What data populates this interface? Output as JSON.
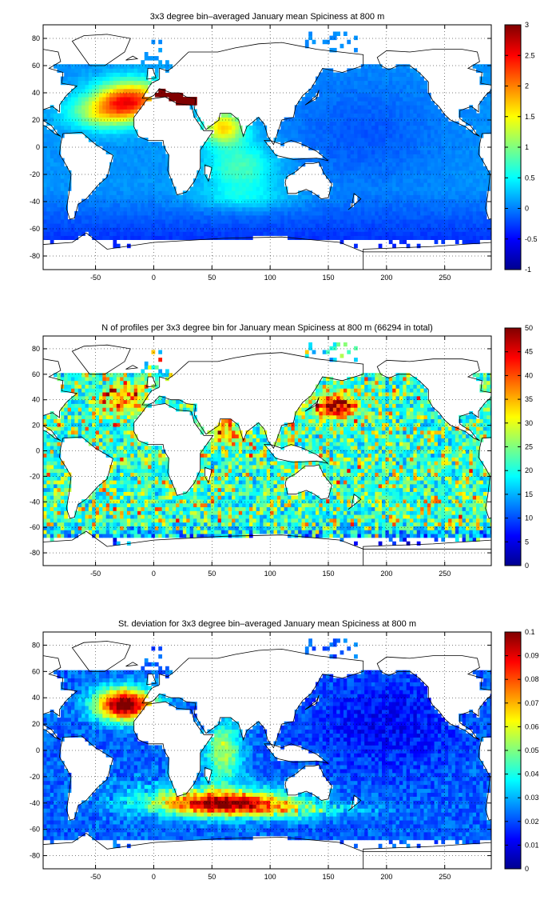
{
  "chart_data": [
    {
      "type": "heatmap",
      "title": "3x3 degree bin–averaged January mean Spiciness at 800 m",
      "xlim": [
        -95,
        290
      ],
      "ylim": [
        -90,
        90
      ],
      "x_ticks": [
        "-50",
        "0",
        "50",
        "100",
        "150",
        "200",
        "250"
      ],
      "y_ticks": [
        "80",
        "60",
        "40",
        "20",
        "0",
        "-20",
        "-40",
        "-60",
        "-80"
      ],
      "clim": [
        -1,
        3
      ],
      "colorbar_ticks": [
        "3",
        "2.5",
        "2",
        "1.5",
        "1",
        "0.5",
        "0",
        "-0.5",
        "-1"
      ],
      "colormap": "jet",
      "grid": true,
      "bin_size_deg": 3
    },
    {
      "type": "heatmap",
      "title": "N of profiles per 3x3 degree bin for January mean Spiciness at 800 m (66294 in total)",
      "xlim": [
        -95,
        290
      ],
      "ylim": [
        -90,
        90
      ],
      "x_ticks": [
        "-50",
        "0",
        "50",
        "100",
        "150",
        "200",
        "250"
      ],
      "y_ticks": [
        "80",
        "60",
        "40",
        "20",
        "0",
        "-20",
        "-40",
        "-60",
        "-80"
      ],
      "clim": [
        0,
        50
      ],
      "colorbar_ticks": [
        "50",
        "45",
        "40",
        "35",
        "30",
        "25",
        "20",
        "15",
        "10",
        "5",
        "0"
      ],
      "colormap": "jet",
      "grid": true,
      "bin_size_deg": 3
    },
    {
      "type": "heatmap",
      "title": "St. deviation for 3x3 degree bin–averaged January mean Spiciness at 800 m",
      "xlim": [
        -95,
        290
      ],
      "ylim": [
        -90,
        90
      ],
      "x_ticks": [
        "-50",
        "0",
        "50",
        "100",
        "150",
        "200",
        "250"
      ],
      "y_ticks": [
        "80",
        "60",
        "40",
        "20",
        "0",
        "-20",
        "-40",
        "-60",
        "-80"
      ],
      "clim": [
        0,
        0.1
      ],
      "colorbar_ticks": [
        "0.1",
        "0.09",
        "0.08",
        "0.07",
        "0.06",
        "0.05",
        "0.04",
        "0.03",
        "0.02",
        "0.01",
        "0"
      ],
      "colormap": "jet",
      "grid": true,
      "bin_size_deg": 3
    }
  ]
}
